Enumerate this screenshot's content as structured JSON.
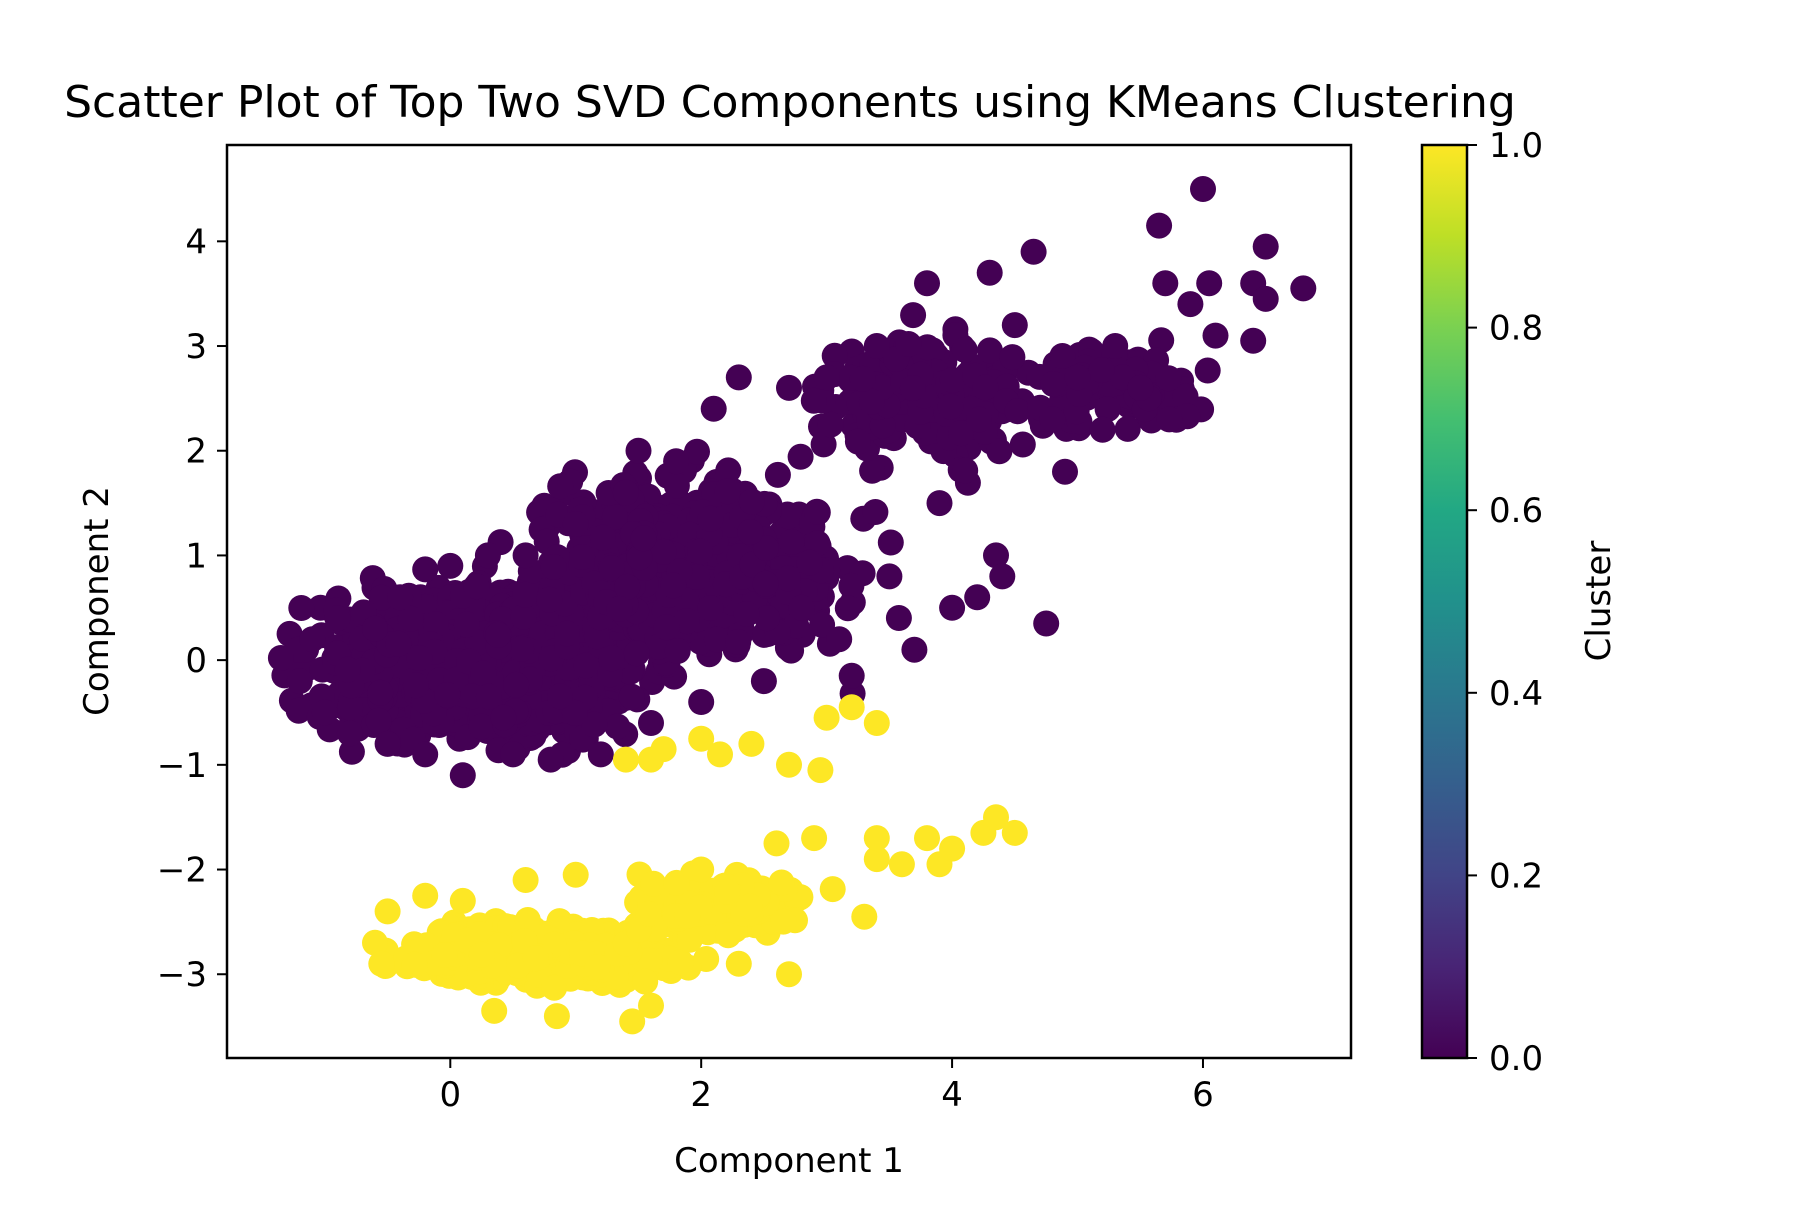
{
  "chart_data": {
    "type": "scatter",
    "title": "Scatter Plot of Top Two SVD Components using KMeans Clustering",
    "xlabel": "Component 1",
    "ylabel": "Component 2",
    "xlim": [
      -1.78,
      7.18
    ],
    "ylim": [
      -3.8,
      4.92
    ],
    "xticks": [
      0,
      2,
      4,
      6
    ],
    "yticks": [
      -3,
      -2,
      -1,
      0,
      1,
      2,
      3,
      4
    ],
    "colorbar": {
      "label": "Cluster",
      "range": [
        0.0,
        1.0
      ],
      "ticks": [
        "0.0",
        "0.2",
        "0.4",
        "0.6",
        "0.8",
        "1.0"
      ],
      "colormap": "viridis"
    },
    "colors": {
      "cluster_0": "#440154",
      "cluster_1": "#fde725"
    },
    "grid": false,
    "series": [
      {
        "cluster": 0,
        "points": [
          [
            -1.35,
            0.02
          ],
          [
            -1.2,
            -0.2
          ],
          [
            -1.1,
            0.2
          ],
          [
            -1.0,
            -0.5
          ],
          [
            -0.9,
            0.4
          ],
          [
            -0.8,
            -0.7
          ],
          [
            -0.6,
            0.3
          ],
          [
            -0.5,
            -0.8
          ],
          [
            -0.4,
            0.6
          ],
          [
            -0.2,
            -0.9
          ],
          [
            0.0,
            0.9
          ],
          [
            0.1,
            -1.1
          ],
          [
            0.3,
            1.0
          ],
          [
            0.5,
            -0.9
          ],
          [
            0.6,
            1.0
          ],
          [
            0.8,
            -0.95
          ],
          [
            1.0,
            1.3
          ],
          [
            1.2,
            -0.9
          ],
          [
            1.4,
            1.6
          ],
          [
            1.5,
            2.0
          ],
          [
            1.6,
            -0.6
          ],
          [
            1.8,
            1.9
          ],
          [
            2.0,
            -0.4
          ],
          [
            2.1,
            2.4
          ],
          [
            2.3,
            2.7
          ],
          [
            2.5,
            -0.2
          ],
          [
            2.7,
            2.6
          ],
          [
            2.8,
            0.5
          ],
          [
            3.0,
            2.7
          ],
          [
            3.1,
            0.2
          ],
          [
            3.2,
            -0.15
          ],
          [
            3.4,
            3.0
          ],
          [
            3.5,
            0.8
          ],
          [
            3.7,
            0.1
          ],
          [
            3.8,
            3.6
          ],
          [
            3.9,
            1.5
          ],
          [
            4.0,
            0.5
          ],
          [
            4.2,
            0.6
          ],
          [
            4.3,
            3.7
          ],
          [
            4.35,
            1.0
          ],
          [
            4.4,
            0.8
          ],
          [
            4.5,
            3.2
          ],
          [
            4.65,
            3.9
          ],
          [
            4.75,
            0.35
          ],
          [
            4.8,
            2.3
          ],
          [
            4.9,
            1.8
          ],
          [
            5.0,
            2.7
          ],
          [
            5.2,
            2.2
          ],
          [
            5.3,
            3.0
          ],
          [
            5.5,
            2.6
          ],
          [
            5.65,
            4.15
          ],
          [
            5.7,
            3.6
          ],
          [
            5.9,
            3.4
          ],
          [
            6.0,
            4.5
          ],
          [
            6.05,
            3.6
          ],
          [
            6.1,
            3.1
          ],
          [
            6.4,
            3.6
          ],
          [
            6.4,
            3.05
          ],
          [
            6.5,
            3.95
          ],
          [
            6.5,
            3.45
          ],
          [
            6.8,
            3.55
          ]
        ],
        "cloud": [
          {
            "center": [
              0.2,
              -0.05
            ],
            "spread": [
              1.25,
              0.72
            ],
            "count": 1400
          },
          {
            "center": [
              1.9,
              0.9
            ],
            "spread": [
              1.25,
              0.9
            ],
            "count": 650
          },
          {
            "center": [
              3.8,
              2.5
            ],
            "spread": [
              0.85,
              0.65
            ],
            "count": 220
          },
          {
            "center": [
              5.3,
              2.6
            ],
            "spread": [
              0.7,
              0.4
            ],
            "count": 90
          }
        ]
      },
      {
        "cluster": 1,
        "points": [
          [
            -0.6,
            -2.7
          ],
          [
            -0.55,
            -2.9
          ],
          [
            -0.5,
            -2.4
          ],
          [
            -0.2,
            -2.25
          ],
          [
            0.1,
            -2.3
          ],
          [
            0.35,
            -3.35
          ],
          [
            0.6,
            -2.1
          ],
          [
            0.85,
            -3.4
          ],
          [
            1.0,
            -2.05
          ],
          [
            1.45,
            -3.45
          ],
          [
            1.6,
            -3.3
          ],
          [
            2.0,
            -2.0
          ],
          [
            2.3,
            -2.9
          ],
          [
            2.7,
            -3.0
          ],
          [
            2.6,
            -1.75
          ],
          [
            2.9,
            -1.7
          ],
          [
            3.3,
            -2.45
          ],
          [
            3.4,
            -1.9
          ],
          [
            3.4,
            -1.7
          ],
          [
            3.6,
            -1.95
          ],
          [
            3.8,
            -1.7
          ],
          [
            3.9,
            -1.95
          ],
          [
            4.0,
            -1.8
          ],
          [
            4.25,
            -1.65
          ],
          [
            4.35,
            -1.5
          ],
          [
            4.5,
            -1.65
          ],
          [
            1.4,
            -0.95
          ],
          [
            1.6,
            -0.95
          ],
          [
            1.7,
            -0.85
          ],
          [
            2.15,
            -0.9
          ],
          [
            2.4,
            -0.8
          ],
          [
            2.7,
            -1.0
          ],
          [
            2.95,
            -1.05
          ],
          [
            3.0,
            -0.55
          ],
          [
            3.2,
            -0.45
          ],
          [
            3.4,
            -0.6
          ],
          [
            2.0,
            -0.75
          ]
        ],
        "cloud": [
          {
            "center": [
              0.75,
              -2.8
            ],
            "spread": [
              1.05,
              0.28
            ],
            "count": 520
          },
          {
            "center": [
              2.2,
              -2.35
            ],
            "spread": [
              0.7,
              0.3
            ],
            "count": 160
          }
        ]
      }
    ]
  }
}
